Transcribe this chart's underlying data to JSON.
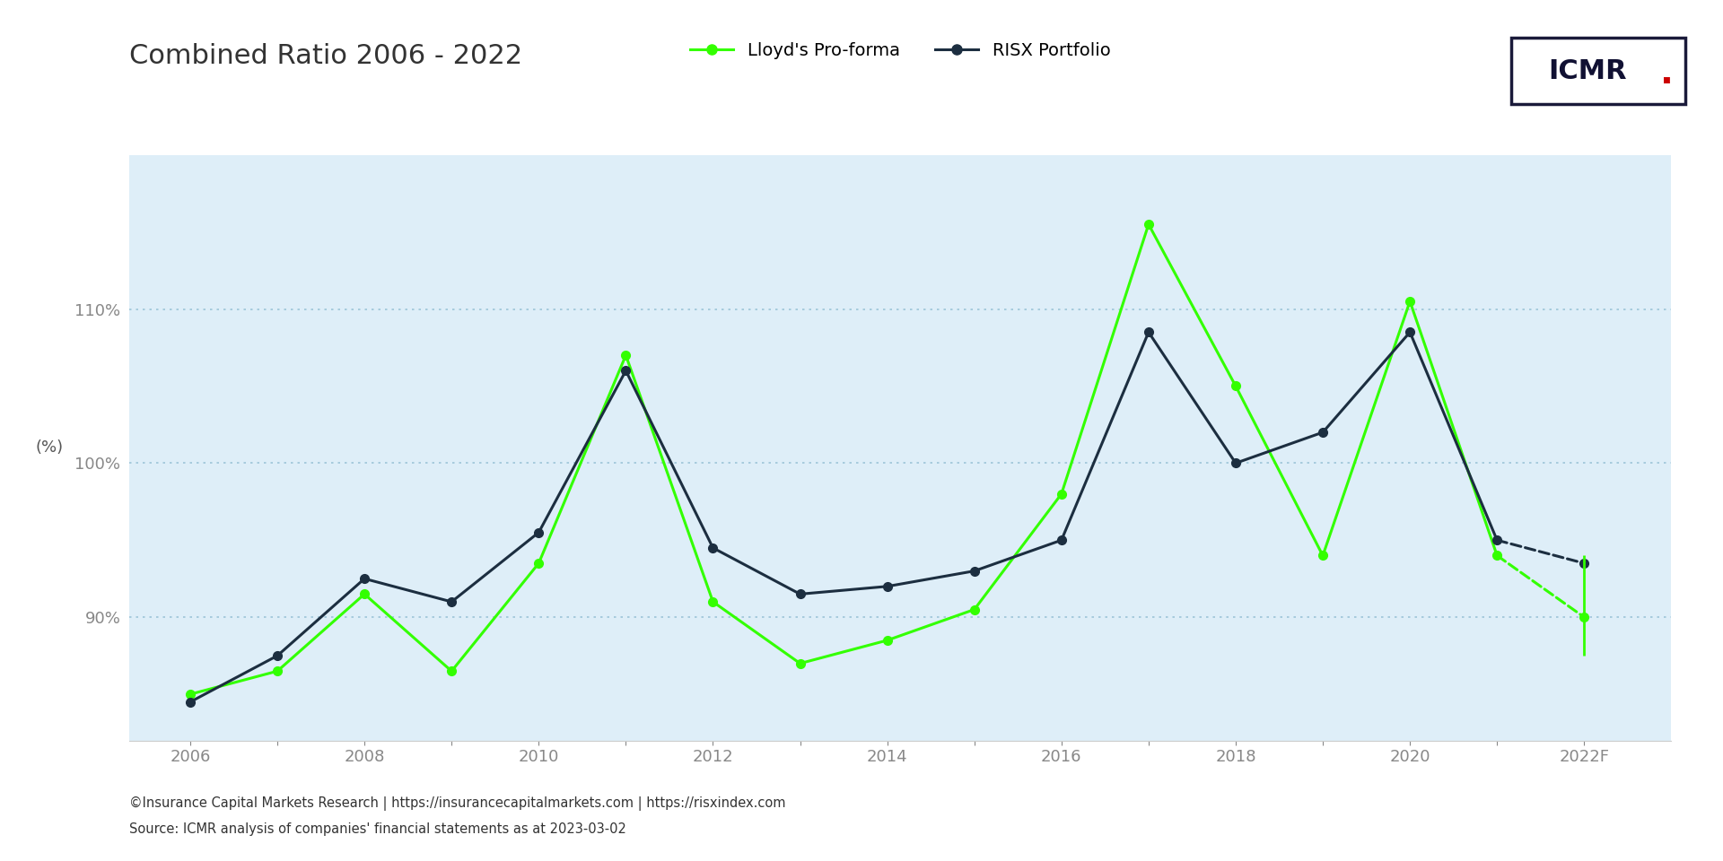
{
  "title": "Combined Ratio 2006 - 2022",
  "ylabel": "(%)",
  "background_color": "#deeef8",
  "outer_background": "#ffffff",
  "lloyds_color": "#33ff00",
  "risx_color": "#1c2e40",
  "years_solid": [
    2006,
    2007,
    2008,
    2009,
    2010,
    2011,
    2012,
    2013,
    2014,
    2015,
    2016,
    2017,
    2018,
    2019,
    2020,
    2021
  ],
  "lloyds_solid": [
    85.0,
    86.5,
    91.5,
    86.5,
    93.5,
    107.0,
    91.0,
    87.0,
    88.5,
    90.5,
    98.0,
    115.5,
    105.0,
    94.0,
    110.5,
    94.0
  ],
  "risx_solid": [
    84.5,
    87.5,
    92.5,
    91.0,
    95.5,
    106.0,
    94.5,
    91.5,
    92.0,
    93.0,
    95.0,
    108.5,
    100.0,
    102.0,
    108.5,
    95.0
  ],
  "year_forecast": 2022,
  "lloyds_2021": 94.0,
  "risx_2021": 95.0,
  "lloyds_forecast": 90.0,
  "lloyds_forecast_upper": 94.0,
  "lloyds_forecast_lower": 87.5,
  "risx_forecast": 93.5,
  "grid_color": "#9dc4d8",
  "yticks": [
    90,
    100,
    110
  ],
  "ytick_labels": [
    "90%",
    "100%",
    "110%"
  ],
  "xlim_min": 2005.3,
  "xlim_max": 2023.0,
  "ylim_min": 82,
  "ylim_max": 120,
  "footnote_line1": "©Insurance Capital Markets Research | https://insurancecapitalmarkets.com | https://risxindex.com",
  "footnote_line2": "Source: ICMR analysis of companies' financial statements as at 2023-03-02",
  "legend_lloyds": "Lloyd's Pro-forma",
  "legend_risx": "RISX Portfolio",
  "marker_size": 7,
  "linewidth": 2.2
}
